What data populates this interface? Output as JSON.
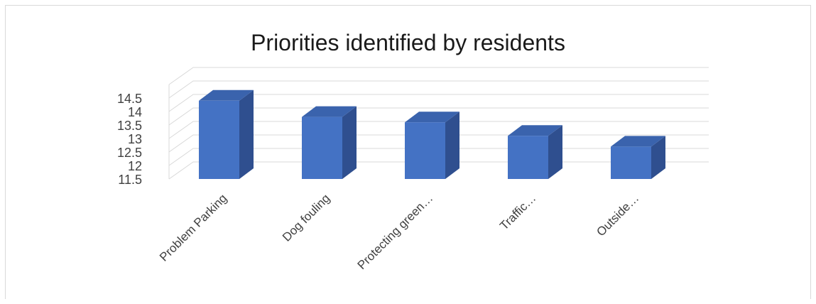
{
  "chart_data": {
    "type": "bar",
    "title": "Priorities identified by residents",
    "categories": [
      "Problem Parking",
      "Dog fouling",
      "Protecting green…",
      "Traffic…",
      "Outside…"
    ],
    "values": [
      14.4,
      13.8,
      13.6,
      13.1,
      12.7
    ],
    "ylim": [
      11.5,
      14.5
    ],
    "yticks": [
      "11.5",
      "12",
      "12.5",
      "13",
      "13.5",
      "14",
      "14.5"
    ],
    "grid": true,
    "legend": "none",
    "colors": {
      "bar_front": "#4472c4",
      "bar_side": "#2f4f8f",
      "bar_top": "#3a63ad",
      "grid": "#d9d9d9"
    }
  }
}
